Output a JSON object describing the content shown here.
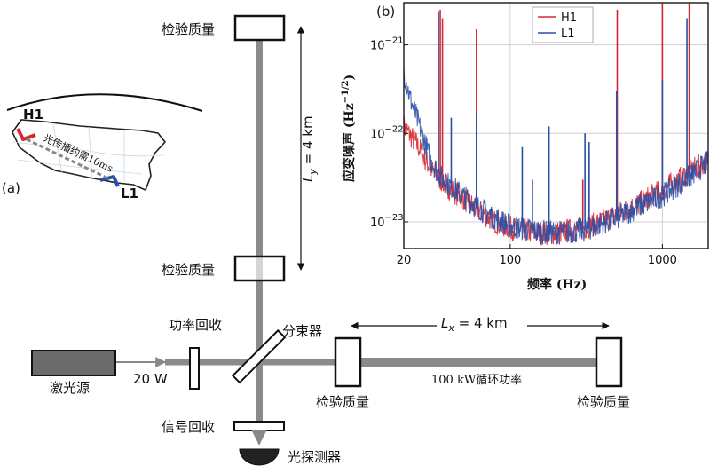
{
  "diagram": {
    "panel_a_label": "(a)",
    "panel_b_label": "(b)",
    "map": {
      "site_h": "H1",
      "site_l": "L1",
      "travel_note": "光传播约需10ms"
    },
    "test_mass_label": "检验质量",
    "arm_y_label_main": "L",
    "arm_y_label_sub": "y",
    "arm_y_label_rest": " = 4 km",
    "arm_x_label_main": "L",
    "arm_x_label_sub": "x",
    "arm_x_label_rest": " = 4 km",
    "laser_label": "激光源",
    "laser_power": "20 W",
    "power_recycling": "功率回收",
    "beam_splitter": "分束器",
    "signal_recycling": "信号回收",
    "photodetector": "光探测器",
    "circulating_power": "100 kW循环功率"
  },
  "chart_data": {
    "type": "line",
    "xscale": "log",
    "yscale": "log",
    "xlim": [
      20,
      2000
    ],
    "ylim": [
      5e-24,
      3e-21
    ],
    "xlabel": "频率 (Hz)",
    "ylabel_main": "应变噪声 (Hz",
    "ylabel_exp": "−1/2",
    "ylabel_end": ")",
    "x_ticks": [
      {
        "v": 20,
        "t": "20"
      },
      {
        "v": 100,
        "t": "100"
      },
      {
        "v": 1000,
        "t": "1000"
      }
    ],
    "y_ticks": [
      {
        "v": 1e-21,
        "base": "10",
        "exp": "−21"
      },
      {
        "v": 1e-22,
        "base": "10",
        "exp": "−22"
      },
      {
        "v": 1e-23,
        "base": "10",
        "exp": "−23"
      }
    ],
    "grid": true,
    "legend_position": "top-right",
    "colors": {
      "H1": "#d9262c",
      "L1": "#2a4fa8"
    },
    "series": [
      {
        "name": "H1",
        "floor": [
          [
            20,
            1.2e-22
          ],
          [
            25,
            7e-23
          ],
          [
            30,
            4e-23
          ],
          [
            35,
            3e-23
          ],
          [
            40,
            2.4e-23
          ],
          [
            50,
            1.8e-23
          ],
          [
            60,
            1.4e-23
          ],
          [
            80,
            1e-23
          ],
          [
            100,
            8.5e-24
          ],
          [
            150,
            7.5e-24
          ],
          [
            200,
            7.5e-24
          ],
          [
            300,
            8.5e-24
          ],
          [
            400,
            1e-23
          ],
          [
            500,
            1.2e-23
          ],
          [
            700,
            1.6e-23
          ],
          [
            1000,
            2.3e-23
          ],
          [
            1500,
            3.6e-23
          ],
          [
            2000,
            5e-23
          ]
        ],
        "lines": [
          [
            34.7,
            2.5e-21
          ],
          [
            35.9,
            2e-21
          ],
          [
            60,
            1.5e-21
          ],
          [
            300,
            3e-23
          ],
          [
            330,
            6e-23
          ],
          [
            505,
            2.5e-21
          ],
          [
            1000,
            3e-21
          ],
          [
            1500,
            3e-21
          ]
        ]
      },
      {
        "name": "L1",
        "floor": [
          [
            20,
            5e-22
          ],
          [
            22,
            2.5e-22
          ],
          [
            25,
            1.3e-22
          ],
          [
            30,
            5e-23
          ],
          [
            35,
            3.2e-23
          ],
          [
            40,
            2.6e-23
          ],
          [
            50,
            1.9e-23
          ],
          [
            60,
            1.5e-23
          ],
          [
            80,
            1.1e-23
          ],
          [
            100,
            9e-24
          ],
          [
            150,
            7.8e-24
          ],
          [
            200,
            7.5e-24
          ],
          [
            300,
            8e-24
          ],
          [
            400,
            9.5e-24
          ],
          [
            500,
            1.1e-23
          ],
          [
            700,
            1.5e-23
          ],
          [
            1000,
            2e-23
          ],
          [
            1500,
            3.2e-23
          ],
          [
            2000,
            4.8e-23
          ]
        ],
        "lines": [
          [
            33.8,
            2.4e-21
          ],
          [
            41,
            1.5e-22
          ],
          [
            60,
            1.7e-22
          ],
          [
            120,
            7e-23
          ],
          [
            140,
            3e-23
          ],
          [
            180,
            1.2e-22
          ],
          [
            310,
            1e-22
          ],
          [
            330,
            8e-23
          ],
          [
            500,
            3e-22
          ],
          [
            1000,
            4e-22
          ],
          [
            1450,
            2e-21
          ]
        ]
      }
    ]
  }
}
